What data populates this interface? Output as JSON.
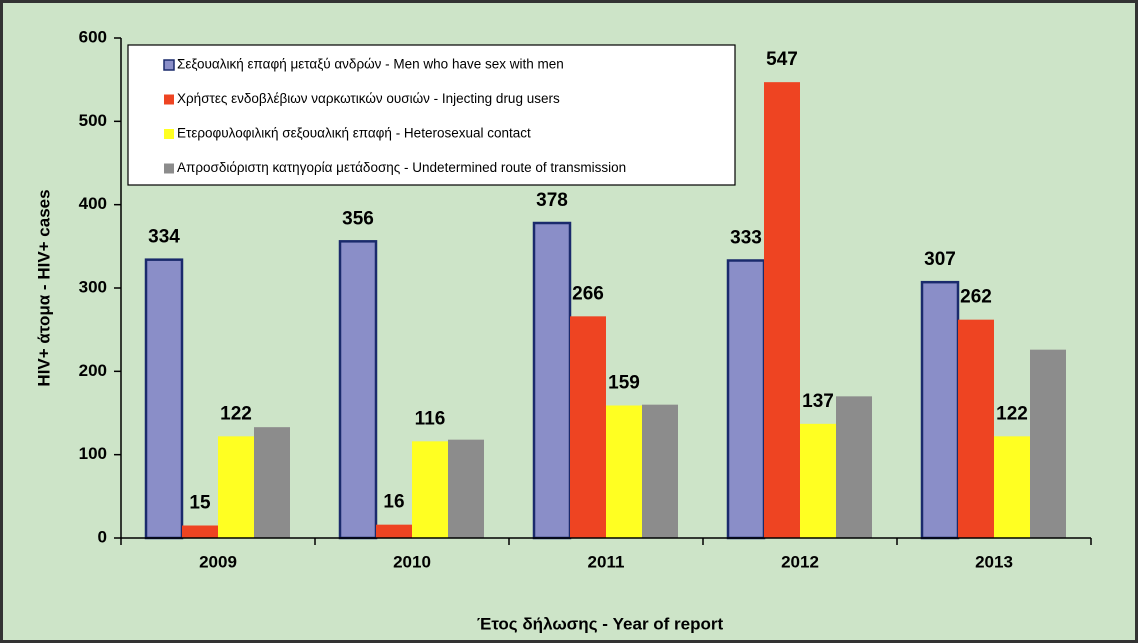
{
  "chart_data": {
    "type": "bar",
    "categories": [
      "2009",
      "2010",
      "2011",
      "2012",
      "2013"
    ],
    "series": [
      {
        "name": "Σεξουαλική επαφή μεταξύ ανδρών - Men who have sex with men",
        "color": "#8a8ec8",
        "values": [
          334,
          356,
          378,
          333,
          307
        ],
        "data_labels": true
      },
      {
        "name": "Χρήστες ενδοβλέβιων ναρκωτικών ουσιών - Injecting drug users",
        "color": "#ee4422",
        "values": [
          15,
          16,
          266,
          547,
          262
        ],
        "data_labels": true
      },
      {
        "name": "Ετεροφυλοφιλική σεξουαλική επαφή - Heterosexual contact",
        "color": "#ffff22",
        "values": [
          122,
          116,
          159,
          137,
          122
        ],
        "data_labels": true
      },
      {
        "name": "Απροσδιόριστη κατηγορία μετάδοσης - Undetermined route of transmission",
        "color": "#8c8c8c",
        "values": [
          133,
          118,
          160,
          170,
          226
        ],
        "data_labels": false
      }
    ],
    "ylabel": "HIV+ άτομα  -  HIV+ cases",
    "xlabel": "Έτος δήλωσης - Year of report",
    "ylim": [
      0,
      600
    ],
    "yticks": [
      0,
      100,
      200,
      300,
      400,
      500,
      600
    ],
    "legend": "top-left",
    "grid": false
  }
}
